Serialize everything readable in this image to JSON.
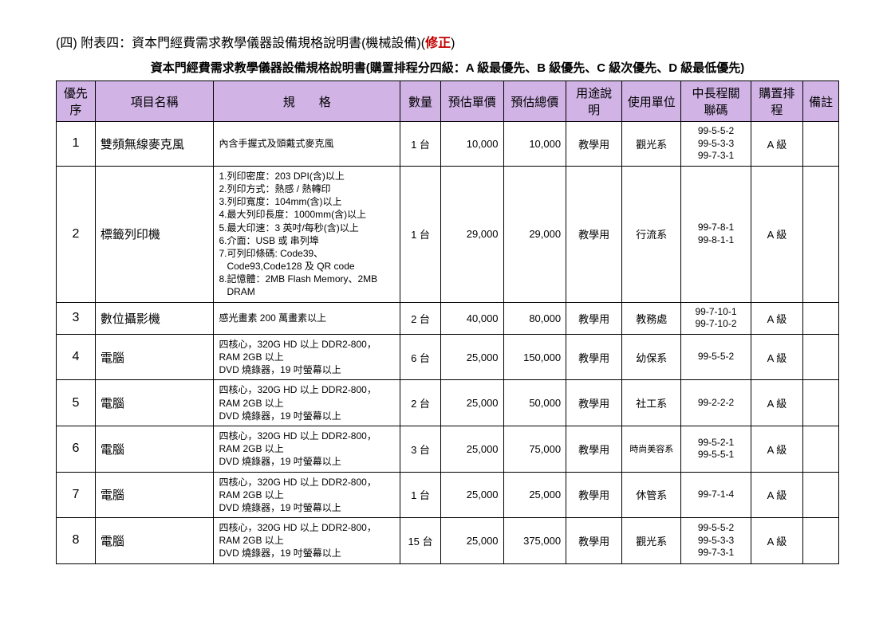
{
  "doc": {
    "title_prefix": "(四)   附表四：資本門經費需求教學儀器設備規格說明書(機械設備)(",
    "title_revision": "修正",
    "title_suffix": ")",
    "subtitle": "資本門經費需求教學儀器設備規格說明書(購置排程分四級：A 級最優先、B 級優先、C 級次優先、D 級最低優先)"
  },
  "columns": [
    "優先序",
    "項目名稱",
    "規　　格",
    "數量",
    "預估單價",
    "預估總價",
    "用途說明",
    "使用單位",
    "中長程關聯碼",
    "購置排程",
    "備註"
  ],
  "rows": [
    {
      "priority": "1",
      "name": "雙頻無線麥克風",
      "spec": "內含手握式及頭戴式麥克風",
      "qty": "1 台",
      "price": "10,000",
      "total": "10,000",
      "usage": "教學用",
      "dept": "觀光系",
      "dept_small": false,
      "linkcode": "99-5-5-2\n99-5-3-3\n99-7-3-1",
      "sched": "A 級",
      "remark": ""
    },
    {
      "priority": "2",
      "name": "標籤列印機",
      "spec": "1.列印密度：203 DPI(含)以上\n2.列印方式：熱感 / 熱轉印\n3.列印寬度：104mm(含)以上\n4.最大列印長度：1000mm(含)以上\n5.最大印速：3 英吋/每秒(含)以上\n6.介面：USB 或 串列埠\n7.可列印條碼: Code39、\n   Code93,Code128 及 QR code\n8.記憶體：2MB Flash Memory、2MB\n   DRAM",
      "qty": "1 台",
      "price": "29,000",
      "total": "29,000",
      "usage": "教學用",
      "dept": "行流系",
      "dept_small": false,
      "linkcode": "99-7-8-1\n99-8-1-1",
      "sched": "A 級",
      "remark": ""
    },
    {
      "priority": "3",
      "name": "數位攝影機",
      "spec": "感光畫素 200 萬畫素以上",
      "qty": "2 台",
      "price": "40,000",
      "total": "80,000",
      "usage": "教學用",
      "dept": "教務處",
      "dept_small": false,
      "linkcode": "99-7-10-1\n99-7-10-2",
      "sched": "A 級",
      "remark": ""
    },
    {
      "priority": "4",
      "name": "電腦",
      "spec": "四核心，320G HD 以上 DDR2-800，\nRAM 2GB 以上\nDVD 燒錄器，19 吋螢幕以上",
      "qty": "6 台",
      "price": "25,000",
      "total": "150,000",
      "usage": "教學用",
      "dept": "幼保系",
      "dept_small": false,
      "linkcode": "99-5-5-2",
      "sched": "A 級",
      "remark": ""
    },
    {
      "priority": "5",
      "name": "電腦",
      "spec": "四核心，320G HD 以上 DDR2-800，\nRAM 2GB 以上\nDVD 燒錄器，19 吋螢幕以上",
      "qty": "2 台",
      "price": "25,000",
      "total": "50,000",
      "usage": "教學用",
      "dept": "社工系",
      "dept_small": false,
      "linkcode": "99-2-2-2",
      "sched": "A 級",
      "remark": ""
    },
    {
      "priority": "6",
      "name": "電腦",
      "spec": "四核心，320G HD 以上 DDR2-800，\nRAM 2GB 以上\nDVD 燒錄器，19 吋螢幕以上",
      "qty": "3 台",
      "price": "25,000",
      "total": "75,000",
      "usage": "教學用",
      "dept": "時尚美容系",
      "dept_small": true,
      "linkcode": "99-5-2-1\n99-5-5-1",
      "sched": "A 級",
      "remark": ""
    },
    {
      "priority": "7",
      "name": "電腦",
      "spec": "四核心，320G HD 以上 DDR2-800，\nRAM 2GB 以上\nDVD 燒錄器，19 吋螢幕以上",
      "qty": "1 台",
      "price": "25,000",
      "total": "25,000",
      "usage": "教學用",
      "dept": "休管系",
      "dept_small": false,
      "linkcode": "99-7-1-4",
      "sched": "A 級",
      "remark": ""
    },
    {
      "priority": "8",
      "name": "電腦",
      "spec": "四核心，320G HD 以上 DDR2-800，\nRAM 2GB 以上\nDVD 燒錄器，19 吋螢幕以上",
      "qty": "15 台",
      "price": "25,000",
      "total": "375,000",
      "usage": "教學用",
      "dept": "觀光系",
      "dept_small": false,
      "linkcode": "99-5-5-2\n99-5-3-3\n99-7-3-1",
      "sched": "A 級",
      "remark": ""
    }
  ]
}
